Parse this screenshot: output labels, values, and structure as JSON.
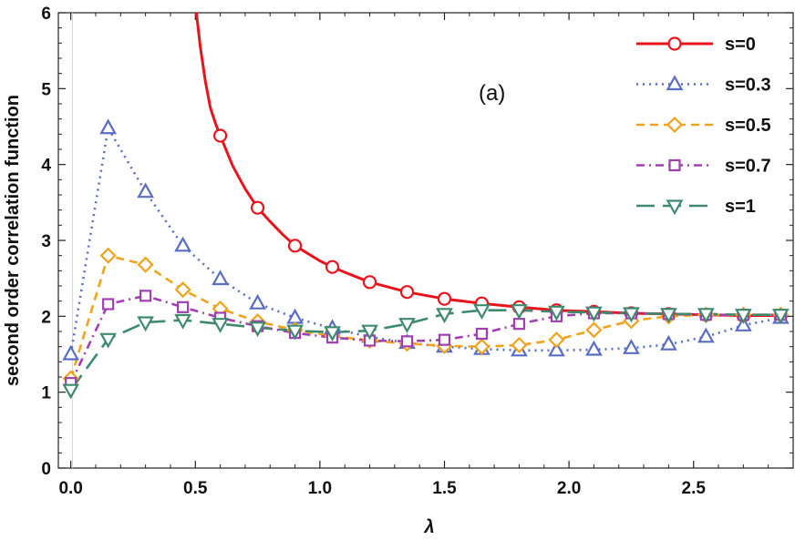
{
  "chart_data": {
    "type": "line",
    "panel_label": "(a)",
    "xlabel": "λ",
    "ylabel": "second order correlation function",
    "xlim": [
      -0.05,
      2.9
    ],
    "ylim": [
      0,
      6
    ],
    "xticks": [
      0.0,
      0.5,
      1.0,
      1.5,
      2.0,
      2.5
    ],
    "xtick_labels": [
      "0.0",
      "0.5",
      "1.0",
      "1.5",
      "2.0",
      "2.5"
    ],
    "yticks": [
      0,
      1,
      2,
      3,
      4,
      5,
      6
    ],
    "ytick_labels": [
      "0",
      "1",
      "2",
      "3",
      "4",
      "5",
      "6"
    ],
    "legend_position": "top-right",
    "grid": false,
    "series": [
      {
        "name": "s=0",
        "color": "#e8141b",
        "marker": "circle",
        "line": "solid",
        "x": [
          0.6,
          0.75,
          0.9,
          1.05,
          1.2,
          1.35,
          1.5,
          1.65,
          1.8,
          1.95,
          2.1,
          2.25,
          2.4,
          2.55,
          2.7,
          2.85
        ],
        "y": [
          4.38,
          3.43,
          2.93,
          2.65,
          2.45,
          2.32,
          2.23,
          2.17,
          2.12,
          2.08,
          2.06,
          2.04,
          2.03,
          2.02,
          2.01,
          2.01
        ],
        "curve_x": [
          0.504,
          0.52,
          0.54,
          0.56,
          0.58,
          0.6,
          0.65,
          0.7,
          0.75,
          0.8,
          0.85,
          0.9,
          1.0,
          1.05,
          1.1,
          1.2,
          1.35,
          1.5,
          1.65,
          1.8,
          1.95,
          2.1,
          2.25,
          2.4,
          2.55,
          2.7,
          2.85
        ],
        "curve_y": [
          6.0,
          5.55,
          5.1,
          4.75,
          4.55,
          4.38,
          3.98,
          3.68,
          3.43,
          3.25,
          3.08,
          2.93,
          2.73,
          2.65,
          2.58,
          2.45,
          2.32,
          2.23,
          2.17,
          2.12,
          2.08,
          2.06,
          2.04,
          2.03,
          2.02,
          2.01,
          2.01
        ]
      },
      {
        "name": "s=0.3",
        "color": "#5a6dc4",
        "marker": "triangle-up",
        "line": "dotted",
        "x": [
          0.0,
          0.15,
          0.3,
          0.45,
          0.6,
          0.75,
          0.9,
          1.05,
          1.2,
          1.35,
          1.5,
          1.65,
          1.8,
          1.95,
          2.1,
          2.25,
          2.4,
          2.55,
          2.7,
          2.85
        ],
        "y": [
          1.5,
          4.48,
          3.64,
          2.93,
          2.49,
          2.17,
          1.98,
          1.84,
          1.73,
          1.65,
          1.6,
          1.57,
          1.55,
          1.55,
          1.56,
          1.58,
          1.63,
          1.73,
          1.88,
          1.98
        ]
      },
      {
        "name": "s=0.5",
        "color": "#f0a31c",
        "marker": "diamond",
        "line": "dashed",
        "x": [
          0.0,
          0.15,
          0.3,
          0.45,
          0.6,
          0.75,
          0.9,
          1.05,
          1.2,
          1.35,
          1.5,
          1.65,
          1.8,
          1.95,
          2.1,
          2.25,
          2.4,
          2.55,
          2.7,
          2.85
        ],
        "y": [
          1.18,
          2.8,
          2.68,
          2.35,
          2.1,
          1.93,
          1.82,
          1.74,
          1.68,
          1.64,
          1.61,
          1.6,
          1.62,
          1.69,
          1.82,
          1.94,
          2.0,
          2.02,
          2.02,
          2.02
        ]
      },
      {
        "name": "s=0.7",
        "color": "#a040b0",
        "marker": "square",
        "line": "dash-dot",
        "x": [
          0.0,
          0.15,
          0.3,
          0.45,
          0.6,
          0.75,
          0.9,
          1.05,
          1.2,
          1.35,
          1.5,
          1.65,
          1.8,
          1.95,
          2.1,
          2.25,
          2.4,
          2.55,
          2.7,
          2.85
        ],
        "y": [
          1.12,
          2.16,
          2.27,
          2.12,
          1.98,
          1.87,
          1.78,
          1.72,
          1.68,
          1.67,
          1.69,
          1.77,
          1.9,
          2.0,
          2.04,
          2.04,
          2.03,
          2.02,
          2.02,
          2.02
        ]
      },
      {
        "name": "s=1",
        "color": "#3f8a6e",
        "marker": "triangle-down",
        "line": "long-dash",
        "x": [
          0.0,
          0.15,
          0.3,
          0.45,
          0.6,
          0.75,
          0.9,
          1.05,
          1.2,
          1.35,
          1.5,
          1.65,
          1.8,
          1.95,
          2.1,
          2.25,
          2.4,
          2.55,
          2.7,
          2.85
        ],
        "y": [
          1.03,
          1.7,
          1.92,
          1.95,
          1.9,
          1.85,
          1.81,
          1.79,
          1.81,
          1.9,
          2.03,
          2.08,
          2.08,
          2.06,
          2.05,
          2.04,
          2.03,
          2.03,
          2.02,
          2.02
        ]
      }
    ]
  }
}
